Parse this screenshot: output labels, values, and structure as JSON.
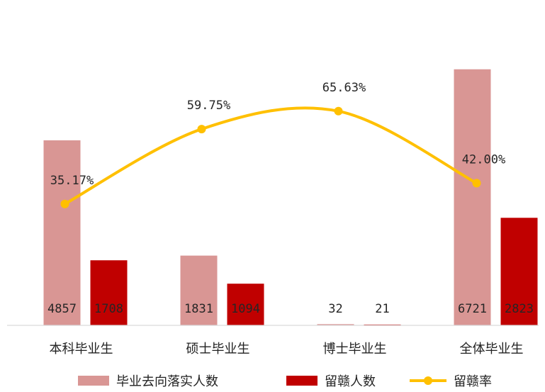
{
  "chart_data": {
    "type": "bar",
    "categories": [
      "本科毕业生",
      "硕士毕业生",
      "博士毕业生",
      "全体毕业生"
    ],
    "series": [
      {
        "name": "毕业去向落实人数",
        "kind": "bar",
        "color": "#d99694",
        "values": [
          4857,
          1831,
          32,
          6721
        ],
        "labels": [
          "4857",
          "1831",
          "32",
          "6721"
        ]
      },
      {
        "name": "留赣人数",
        "kind": "bar",
        "color": "#c00000",
        "values": [
          1708,
          1094,
          21,
          2823
        ],
        "labels": [
          "1708",
          "1094",
          "21",
          "2823"
        ]
      },
      {
        "name": "留赣率",
        "kind": "line",
        "color": "#ffc000",
        "values": [
          35.17,
          59.75,
          65.63,
          42.0
        ],
        "labels": [
          "35.17%",
          "59.75%",
          "65.63%",
          "42.00%"
        ]
      }
    ],
    "legend_position": "bottom",
    "grid": false
  }
}
